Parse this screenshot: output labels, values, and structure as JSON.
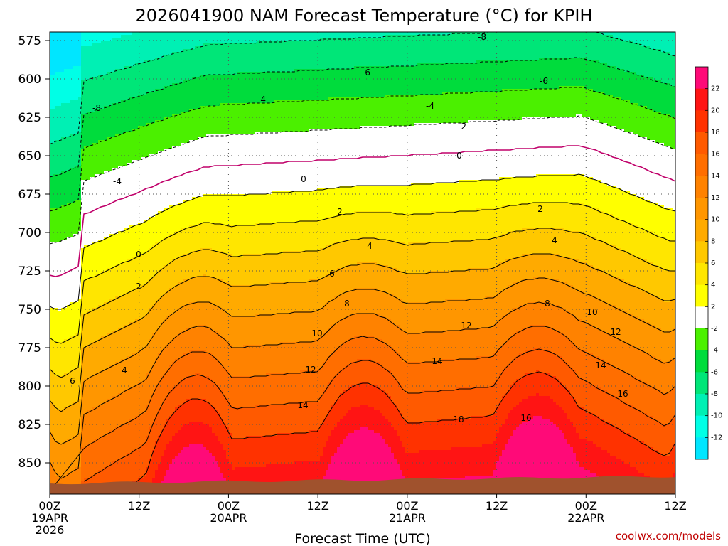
{
  "chart_data": {
    "type": "heatmap",
    "title": "2026041900 NAM Forecast Temperature (°C) for KPIH",
    "xlabel": "Forecast Time (UTC)",
    "ylabel": "",
    "y_ticks": [
      "575",
      "600",
      "625",
      "650",
      "675",
      "700",
      "725",
      "750",
      "775",
      "800",
      "825",
      "850"
    ],
    "x_ticks": [
      {
        "label": "00Z",
        "date": "19APR",
        "year": "2026"
      },
      {
        "label": "12Z",
        "date": "",
        "year": ""
      },
      {
        "label": "00Z",
        "date": "20APR",
        "year": ""
      },
      {
        "label": "12Z",
        "date": "",
        "year": ""
      },
      {
        "label": "00Z",
        "date": "21APR",
        "year": ""
      },
      {
        "label": "12Z",
        "date": "",
        "year": ""
      },
      {
        "label": "00Z",
        "date": "22APR",
        "year": ""
      },
      {
        "label": "12Z",
        "date": "",
        "year": ""
      }
    ],
    "colorbar": {
      "levels": [
        "22",
        "20",
        "18",
        "16",
        "14",
        "12",
        "10",
        "8",
        "6",
        "4",
        "2",
        "-2",
        "-4",
        "-6",
        "-8",
        "-10",
        "-12"
      ],
      "colors": [
        "#ff0a78",
        "#ff1414",
        "#ff3200",
        "#ff5a00",
        "#ff6e00",
        "#ff8200",
        "#ff9600",
        "#ffaa00",
        "#ffc800",
        "#ffe600",
        "#ffff00",
        "#ffffff",
        "#4bf000",
        "#00dc3c",
        "#00e678",
        "#00f0b4",
        "#00ffe6",
        "#00e6ff"
      ]
    },
    "contour_labels": [
      "-8",
      "-6",
      "-6",
      "-8",
      "-4",
      "-4",
      "-2",
      "-4",
      "0",
      "0",
      "0",
      "2",
      "2",
      "2",
      "4",
      "4",
      "4",
      "6",
      "6",
      "8",
      "8",
      "10",
      "10",
      "12",
      "12",
      "12",
      "14",
      "14",
      "14",
      "16",
      "16",
      "18"
    ]
  },
  "footer": {
    "credit": "coolwx.com/models"
  },
  "colors": {
    "terrain": "#a0522d",
    "zero_contour": "#c0006a"
  }
}
